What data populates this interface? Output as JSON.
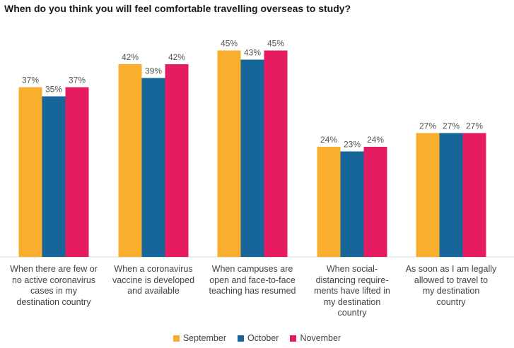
{
  "chart_data": {
    "type": "bar",
    "title": "When do you think you will feel comfortable travelling overseas to study?",
    "categories": [
      [
        "When there are few or",
        "no active coronavirus",
        "cases in my",
        "destination country"
      ],
      [
        "When a coronavirus",
        "vaccine is developed",
        "and available"
      ],
      [
        "When campuses are",
        "open and face-to-face",
        "teaching has resumed"
      ],
      [
        "When social-",
        "distancing require-",
        "ments have lifted in",
        "my destination",
        "country"
      ],
      [
        "As soon as I am legally",
        "allowed to travel to",
        "my destination",
        "country"
      ]
    ],
    "series": [
      {
        "name": "September",
        "color": "#F9AE2E",
        "values": [
          37,
          42,
          45,
          24,
          27
        ]
      },
      {
        "name": "October",
        "color": "#176699",
        "values": [
          35,
          39,
          43,
          23,
          27
        ]
      },
      {
        "name": "November",
        "color": "#E61C63",
        "values": [
          37,
          42,
          45,
          24,
          27
        ]
      }
    ],
    "value_suffix": "%",
    "xlabel": "",
    "ylabel": "",
    "ylim": [
      0,
      50
    ],
    "grid": false,
    "legend": "bottom-center"
  }
}
